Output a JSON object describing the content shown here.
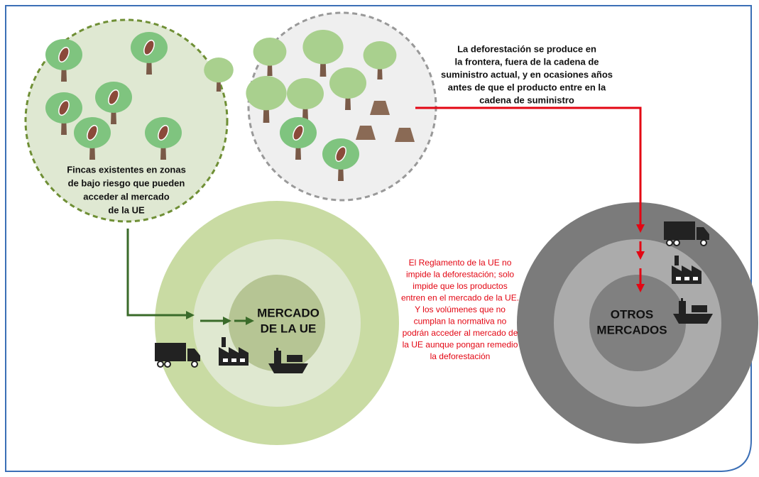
{
  "farms_label": {
    "lines": [
      "Fincas existentes en zonas",
      "de bajo riesgo que pueden",
      "acceder al mercado",
      "de la UE"
    ]
  },
  "deforestation_note": {
    "lines": [
      "La deforestación se produce en",
      "la frontera, fuera de la cadena de",
      "suministro actual, y en ocasiones años",
      "antes de que el producto entre en la",
      "cadena de suministro"
    ]
  },
  "eu_market": {
    "lines": [
      "MERCADO",
      "DE LA UE"
    ]
  },
  "regulation_note": {
    "lines": [
      "El Reglamento de la UE no",
      "impide la deforestación; solo",
      "impide que los productos",
      "entren en el mercado de la UE.",
      "Y los volúmenes que no",
      "cumplan la normativa no",
      "podrán acceder al mercado de",
      "la UE aunque pongan remedio",
      "la deforestación"
    ]
  },
  "other_markets": {
    "lines": [
      "OTROS",
      "MERCADOS"
    ]
  }
}
